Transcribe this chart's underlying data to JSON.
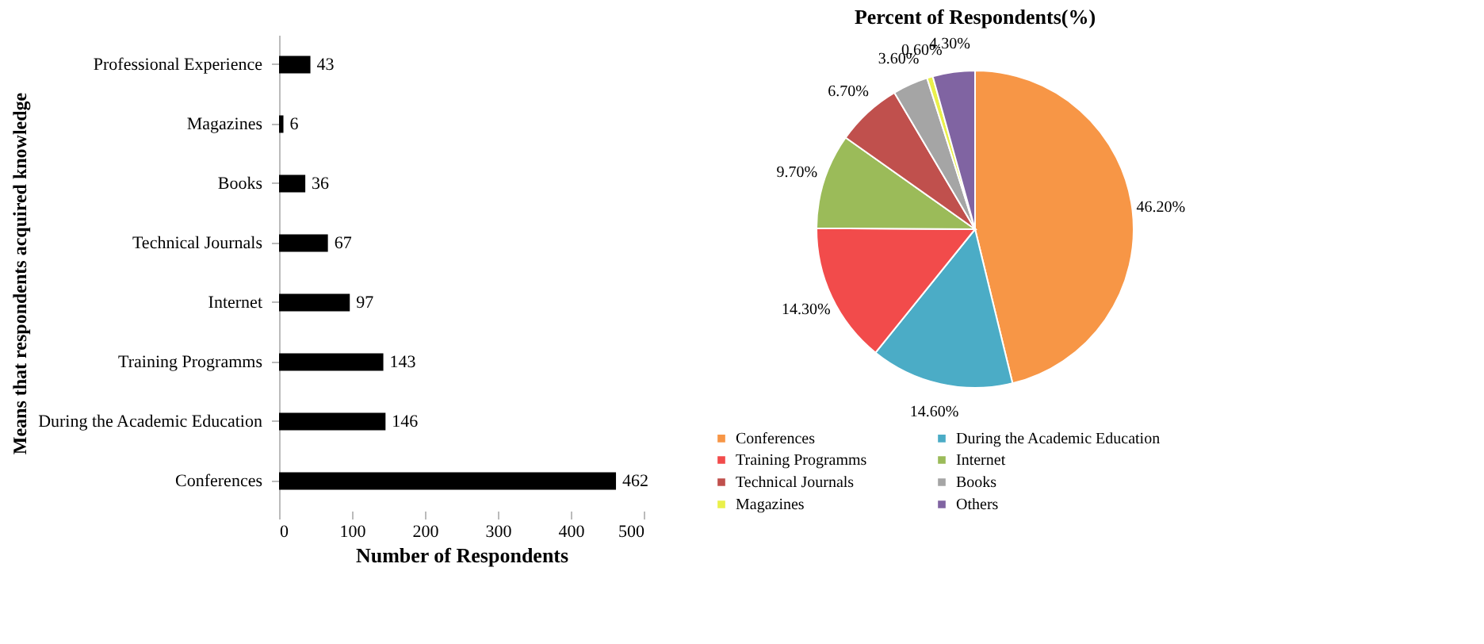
{
  "chart_data": [
    {
      "type": "bar",
      "orientation": "horizontal",
      "xlabel": "Number of Respondents",
      "ylabel": "Means that respondents acquired knowledge",
      "categories": [
        "Professional Experience",
        "Magazines",
        "Books",
        "Technical Journals",
        "Internet",
        "Training Programms",
        "During the Academic Education",
        "Conferences"
      ],
      "values": [
        43,
        6,
        36,
        67,
        97,
        143,
        146,
        462
      ],
      "color": "#000000",
      "xlim": [
        0,
        500
      ],
      "xticks": [
        0,
        100,
        200,
        300,
        400,
        500
      ],
      "grid": false,
      "data_labels": true
    },
    {
      "type": "pie",
      "title": "Percent  of  Respondents(%)",
      "categories": [
        "Conferences",
        "During the Academic Education",
        "Training Programms",
        "Internet",
        "Technical Journals",
        "Books",
        "Magazines",
        "Others"
      ],
      "values": [
        46.2,
        14.6,
        14.3,
        9.7,
        6.7,
        3.6,
        0.6,
        4.3
      ],
      "value_labels": [
        "46.20%",
        "14.60%",
        "14.30%",
        "9.70%",
        "6.70%",
        "3.60%",
        "0.60%",
        "4.30%"
      ],
      "colors": [
        "#f79646",
        "#4bacc6",
        "#f24b4b",
        "#9bbb59",
        "#c0504d",
        "#a5a5a5",
        "#eaf04a",
        "#8064a2"
      ],
      "legend": "bottom"
    }
  ]
}
